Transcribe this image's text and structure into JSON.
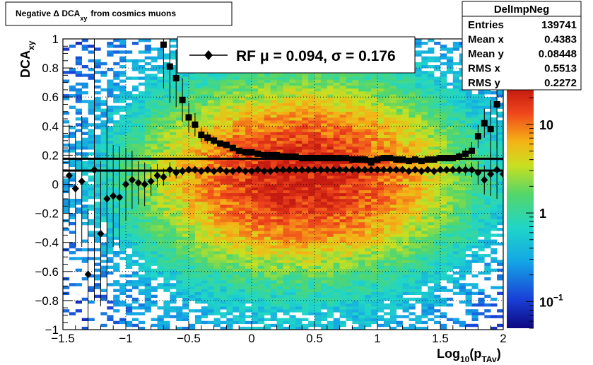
{
  "chart_data": {
    "type": "heatmap",
    "title": "Negative Δ DCA",
    "title_subscript": "xy",
    "title_suffix": "from cosmics muons",
    "xlabel_main": "Log",
    "xlabel_sub1": "10",
    "xlabel_mid": "(p",
    "xlabel_sub2": "TAv",
    "xlabel_end": ")",
    "ylabel_main": "DCA",
    "ylabel_sub": "xy",
    "xlim": [
      -1.5,
      2.0
    ],
    "ylim": [
      -1.0,
      1.0
    ],
    "x_ticks": [
      "−1.5",
      "−1",
      "−0.5",
      "0",
      "0.5",
      "1",
      "1.5",
      "2"
    ],
    "x_tick_values": [
      -1.5,
      -1.0,
      -0.5,
      0.0,
      0.5,
      1.0,
      1.5,
      2.0
    ],
    "y_ticks": [
      "−1",
      "−0.8",
      "−0.6",
      "−0.4",
      "−0.2",
      "0",
      "0.2",
      "0.4",
      "0.6",
      "0.8",
      "1"
    ],
    "y_tick_values": [
      -1.0,
      -0.8,
      -0.6,
      -0.4,
      -0.2,
      0.0,
      0.2,
      0.4,
      0.6,
      0.8,
      1.0
    ],
    "grid": true,
    "color_scale": "log",
    "colorbar_labels": [
      "10",
      "1",
      "10"
    ],
    "colorbar_label_exponent": "−1",
    "colorbar_label_values": [
      10,
      1,
      0.1
    ],
    "colorbar_range": [
      0.05,
      25
    ],
    "stats": {
      "name": "DelImpNeg",
      "rows": [
        {
          "key": "Entries",
          "value": "139741"
        },
        {
          "key": "Mean x",
          "value": "0.4383"
        },
        {
          "key": "Mean y",
          "value": "0.08448"
        },
        {
          "key": "RMS x",
          "value": "0.5513"
        },
        {
          "key": "RMS y",
          "value": "0.2272"
        }
      ]
    },
    "legend": {
      "text": "RF μ =  0.094, σ =   0.176",
      "placement": "top-center"
    },
    "fit_lines": [
      {
        "name": "mean",
        "y": 0.094
      },
      {
        "name": "sigma",
        "y": 0.176
      }
    ],
    "series": [
      {
        "marker": "diamond",
        "x": [
          -1.45,
          -1.4,
          -1.35,
          -1.3,
          -1.25,
          -1.2,
          -1.15,
          -1.1,
          -1.05,
          -1.0,
          -0.95,
          -0.9,
          -0.85,
          -0.8,
          -0.75,
          -0.7,
          -0.65,
          -0.6,
          -0.55,
          -0.5,
          -0.45,
          -0.4,
          -0.35,
          -0.3,
          -0.25,
          -0.2,
          -0.15,
          -0.1,
          -0.05,
          0.0,
          0.05,
          0.1,
          0.15,
          0.2,
          0.25,
          0.3,
          0.35,
          0.4,
          0.45,
          0.5,
          0.55,
          0.6,
          0.65,
          0.7,
          0.75,
          0.8,
          0.85,
          0.9,
          0.95,
          1.0,
          1.05,
          1.1,
          1.15,
          1.2,
          1.25,
          1.3,
          1.35,
          1.4,
          1.45,
          1.5,
          1.55,
          1.6,
          1.65,
          1.7,
          1.75,
          1.8,
          1.85,
          1.9,
          1.95,
          2.0
        ],
        "y": [
          0.06,
          -0.03,
          0.02,
          -0.62,
          0.1,
          -0.34,
          -0.1,
          -0.08,
          -0.09,
          0.0,
          0.03,
          0.01,
          0.0,
          0.02,
          0.06,
          0.05,
          0.1,
          0.08,
          0.09,
          0.1,
          0.1,
          0.09,
          0.1,
          0.09,
          0.1,
          0.09,
          0.09,
          0.1,
          0.09,
          0.09,
          0.1,
          0.09,
          0.09,
          0.1,
          0.1,
          0.1,
          0.1,
          0.1,
          0.1,
          0.1,
          0.1,
          0.1,
          0.1,
          0.1,
          0.1,
          0.1,
          0.1,
          0.1,
          0.1,
          0.1,
          0.1,
          0.1,
          0.1,
          0.1,
          0.09,
          0.1,
          0.09,
          0.1,
          0.09,
          0.1,
          0.1,
          0.1,
          0.1,
          0.1,
          0.1,
          0.08,
          0.03,
          0.07,
          0.1,
          0.07
        ],
        "err": [
          0.35,
          0.4,
          0.45,
          0.45,
          0.9,
          0.5,
          0.7,
          0.35,
          0.35,
          0.25,
          0.2,
          0.15,
          0.15,
          0.1,
          0.08,
          0.06,
          0.05,
          0.04,
          0.03,
          0.02,
          0.02,
          0.02,
          0.01,
          0.01,
          0.01,
          0.01,
          0.01,
          0.01,
          0.01,
          0.01,
          0.01,
          0.01,
          0.01,
          0.01,
          0.01,
          0.01,
          0.01,
          0.01,
          0.01,
          0.01,
          0.01,
          0.01,
          0.01,
          0.01,
          0.01,
          0.01,
          0.01,
          0.01,
          0.01,
          0.01,
          0.01,
          0.01,
          0.01,
          0.01,
          0.01,
          0.01,
          0.01,
          0.01,
          0.01,
          0.02,
          0.02,
          0.02,
          0.03,
          0.04,
          0.05,
          0.08,
          0.1,
          0.15,
          0.2,
          0.25
        ]
      },
      {
        "marker": "square",
        "x": [
          -0.7,
          -0.65,
          -0.6,
          -0.55,
          -0.5,
          -0.45,
          -0.4,
          -0.35,
          -0.3,
          -0.25,
          -0.2,
          -0.15,
          -0.1,
          -0.05,
          0.0,
          0.05,
          0.1,
          0.15,
          0.2,
          0.25,
          0.3,
          0.35,
          0.4,
          0.45,
          0.5,
          0.55,
          0.6,
          0.65,
          0.7,
          0.75,
          0.8,
          0.85,
          0.9,
          0.95,
          1.0,
          1.05,
          1.1,
          1.15,
          1.2,
          1.25,
          1.3,
          1.35,
          1.4,
          1.45,
          1.5,
          1.55,
          1.6,
          1.65,
          1.7,
          1.75,
          1.8,
          1.85,
          1.9,
          1.95
        ],
        "y": [
          0.96,
          0.81,
          0.73,
          0.58,
          0.46,
          0.41,
          0.34,
          0.32,
          0.3,
          0.28,
          0.27,
          0.25,
          0.23,
          0.22,
          0.22,
          0.21,
          0.2,
          0.2,
          0.2,
          0.19,
          0.19,
          0.19,
          0.18,
          0.18,
          0.18,
          0.18,
          0.18,
          0.18,
          0.18,
          0.18,
          0.17,
          0.17,
          0.17,
          0.15,
          0.17,
          0.18,
          0.18,
          0.17,
          0.17,
          0.16,
          0.17,
          0.16,
          0.17,
          0.17,
          0.18,
          0.18,
          0.18,
          0.19,
          0.21,
          0.23,
          0.33,
          0.42,
          0.38,
          0.55
        ],
        "err": [
          0.3,
          0.25,
          0.2,
          0.15,
          0.1,
          0.08,
          0.05,
          0.04,
          0.03,
          0.02,
          0.02,
          0.02,
          0.01,
          0.01,
          0.01,
          0.01,
          0.01,
          0.01,
          0.01,
          0.01,
          0.01,
          0.01,
          0.01,
          0.01,
          0.01,
          0.01,
          0.01,
          0.01,
          0.01,
          0.01,
          0.01,
          0.01,
          0.01,
          0.01,
          0.01,
          0.01,
          0.01,
          0.01,
          0.01,
          0.01,
          0.01,
          0.01,
          0.01,
          0.01,
          0.02,
          0.02,
          0.02,
          0.03,
          0.04,
          0.06,
          0.08,
          0.1,
          0.2,
          0.3
        ]
      }
    ],
    "density_model": {
      "peak_x": 0.4,
      "peak_y": 0.05,
      "sigma_x": 0.55,
      "sigma_y": 0.28,
      "peak_value": 22
    }
  }
}
